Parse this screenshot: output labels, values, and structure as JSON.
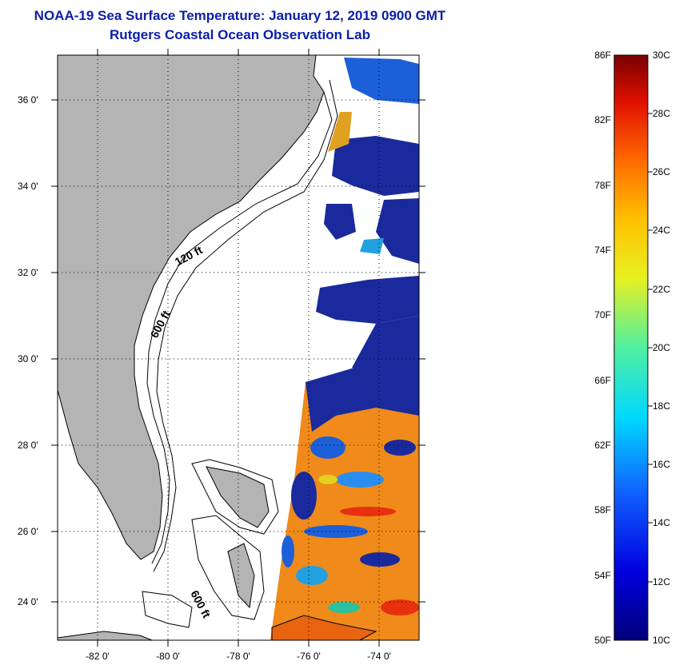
{
  "title_line1": "NOAA-19 Sea Surface Temperature:  January 12, 2019 0900 GMT",
  "title_line2": "Rutgers Coastal Ocean Observation Lab",
  "map": {
    "lat_labels": [
      "36 0'",
      "34 0'",
      "32 0'",
      "30 0'",
      "28 0'",
      "26 0'",
      "24 0'"
    ],
    "lon_labels": [
      "-82 0'",
      "-80 0'",
      "-78 0'",
      "-76 0'",
      "-74 0'"
    ],
    "contour_labels": [
      "120 ft",
      "600 ft",
      "600 ft"
    ],
    "colors": {
      "land": "#b4b4b4",
      "cold": "#0a1a8c",
      "warm": "#ff7a10"
    }
  },
  "colorbar": {
    "fahrenheit_labels": [
      "86F",
      "82F",
      "78F",
      "74F",
      "70F",
      "66F",
      "62F",
      "58F",
      "54F",
      "50F"
    ],
    "celsius_labels": [
      "30C",
      "28C",
      "26C",
      "24C",
      "22C",
      "20C",
      "18C",
      "16C",
      "14C",
      "12C",
      "10C"
    ]
  }
}
